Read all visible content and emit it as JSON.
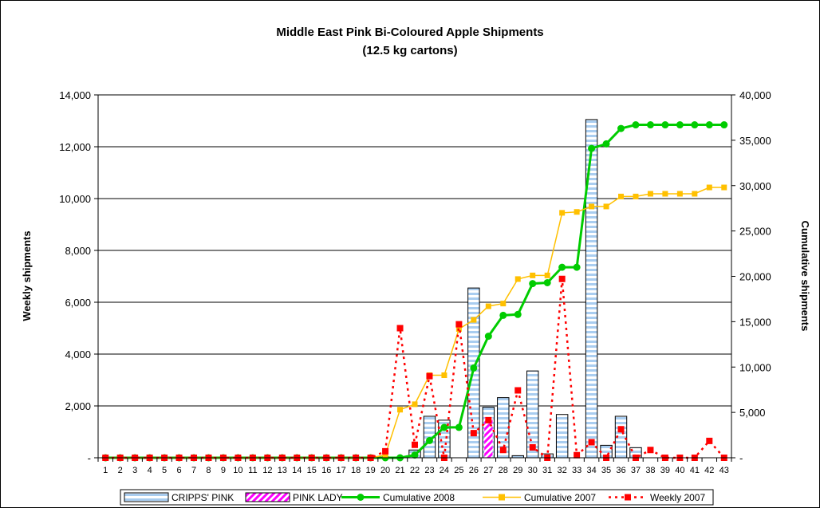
{
  "chart_data": {
    "type": "bar",
    "title": "Middle East Pink Bi-Coloured Apple Shipments",
    "subtitle": "(12.5 kg cartons)",
    "ylabel": "Weekly shipments",
    "y2label": "Cumulative shipments",
    "ylim": [
      0,
      14000
    ],
    "y2lim": [
      0,
      40000
    ],
    "yticks": [
      "-",
      "2,000",
      "4,000",
      "6,000",
      "8,000",
      "10,000",
      "12,000",
      "14,000"
    ],
    "y2ticks": [
      "-",
      "5,000",
      "10,000",
      "15,000",
      "20,000",
      "25,000",
      "30,000",
      "35,000",
      "40,000"
    ],
    "grid": true,
    "legend_position": "bottom",
    "categories": [
      "1",
      "2",
      "3",
      "4",
      "5",
      "6",
      "7",
      "8",
      "9",
      "10",
      "11",
      "12",
      "13",
      "14",
      "15",
      "16",
      "17",
      "18",
      "19",
      "20",
      "21",
      "22",
      "23",
      "24",
      "25",
      "26",
      "27",
      "28",
      "29",
      "30",
      "31",
      "32",
      "33",
      "34",
      "35",
      "36",
      "37",
      "38",
      "39",
      "40",
      "41",
      "42",
      "43"
    ],
    "series": [
      {
        "name": "CRIPPS' PINK",
        "type": "bar",
        "axis": "left",
        "color": "#a9cdf0",
        "values": [
          0,
          0,
          0,
          0,
          0,
          0,
          0,
          0,
          0,
          0,
          0,
          0,
          0,
          0,
          0,
          0,
          0,
          0,
          0,
          0,
          0,
          300,
          1600,
          1450,
          0,
          6550,
          1950,
          2320,
          80,
          3350,
          150,
          1670,
          0,
          13050,
          480,
          1600,
          390,
          0,
          0,
          0,
          0,
          0,
          0
        ]
      },
      {
        "name": "PINK LADY",
        "type": "bar",
        "axis": "left",
        "color": "#ff00ff",
        "values": [
          0,
          0,
          0,
          0,
          0,
          0,
          0,
          0,
          0,
          0,
          0,
          0,
          0,
          0,
          0,
          0,
          0,
          0,
          0,
          0,
          0,
          0,
          0,
          0,
          0,
          0,
          1550,
          0,
          0,
          0,
          0,
          0,
          0,
          0,
          0,
          0,
          0,
          0,
          0,
          0,
          0,
          0,
          0
        ]
      },
      {
        "name": "Cumulative 2008",
        "type": "line",
        "axis": "right",
        "color": "#00cc00",
        "values": [
          0,
          0,
          0,
          0,
          0,
          0,
          0,
          0,
          0,
          0,
          0,
          0,
          0,
          0,
          0,
          0,
          0,
          0,
          0,
          0,
          0,
          300,
          1900,
          3350,
          3350,
          9900,
          13400,
          15700,
          15800,
          19200,
          19300,
          21000,
          21000,
          34100,
          34600,
          36300,
          36700,
          36700,
          36700,
          36700,
          36700,
          36700,
          36700
        ]
      },
      {
        "name": "Cumulative 2007",
        "type": "line",
        "axis": "right",
        "color": "#ffc000",
        "values": [
          0,
          0,
          0,
          0,
          0,
          0,
          0,
          0,
          0,
          0,
          0,
          0,
          0,
          0,
          0,
          0,
          0,
          0,
          0,
          300,
          5300,
          5900,
          9100,
          9100,
          14200,
          15200,
          16700,
          17000,
          19700,
          20100,
          20100,
          27000,
          27100,
          27700,
          27700,
          28800,
          28800,
          29100,
          29100,
          29100,
          29100,
          29800,
          29800
        ]
      },
      {
        "name": "Weekly 2007",
        "type": "line",
        "axis": "left",
        "color": "#ff0000",
        "dashed": true,
        "values": [
          0,
          0,
          0,
          0,
          0,
          0,
          0,
          0,
          0,
          0,
          0,
          0,
          0,
          0,
          0,
          0,
          0,
          0,
          0,
          250,
          5000,
          500,
          3150,
          0,
          5150,
          950,
          1450,
          300,
          2600,
          400,
          0,
          6900,
          100,
          600,
          0,
          1100,
          0,
          300,
          0,
          0,
          0,
          650,
          0
        ]
      }
    ]
  }
}
